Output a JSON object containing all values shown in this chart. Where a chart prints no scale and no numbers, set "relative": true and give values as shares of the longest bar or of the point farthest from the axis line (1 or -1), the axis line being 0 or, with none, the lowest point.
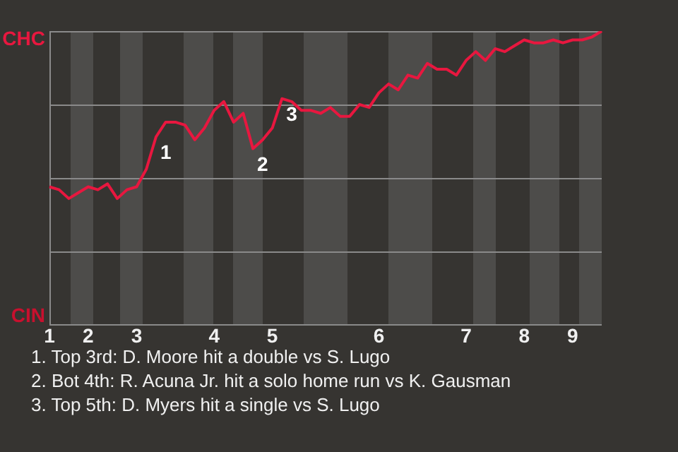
{
  "chart_data": {
    "type": "line",
    "relative": true,
    "categories": [
      "1",
      null,
      null,
      null,
      "2",
      null,
      null,
      null,
      null,
      "3",
      null,
      null,
      null,
      null,
      null,
      null,
      null,
      "4",
      null,
      null,
      null,
      null,
      null,
      "5",
      null,
      null,
      null,
      null,
      null,
      null,
      null,
      null,
      null,
      null,
      "6",
      null,
      null,
      null,
      null,
      null,
      null,
      null,
      null,
      "7",
      null,
      null,
      null,
      null,
      null,
      "8",
      null,
      null,
      null,
      null,
      "9",
      null,
      null,
      null
    ],
    "series": [
      {
        "color": "#e8173f",
        "values": [
          0.47,
          0.46,
          0.43,
          0.45,
          0.47,
          0.46,
          0.48,
          0.43,
          0.46,
          0.47,
          0.53,
          0.64,
          0.69,
          0.69,
          0.68,
          0.63,
          0.67,
          0.73,
          0.76,
          0.69,
          0.72,
          0.6,
          0.63,
          0.67,
          0.77,
          0.76,
          0.73,
          0.73,
          0.72,
          0.74,
          0.71,
          0.71,
          0.75,
          0.74,
          0.79,
          0.82,
          0.8,
          0.85,
          0.84,
          0.89,
          0.87,
          0.87,
          0.85,
          0.9,
          0.93,
          0.9,
          0.94,
          0.93,
          0.95,
          0.97,
          0.96,
          0.96,
          0.97,
          0.96,
          0.97,
          0.97,
          0.98,
          1
        ]
      }
    ],
    "grid": false,
    "legend": false,
    "marker": "none",
    "line_style": "solid",
    "ref_lines": [
      {
        "axis": "y",
        "value": 0.25,
        "color": "#8a8a8a"
      },
      {
        "axis": "y",
        "value": 0.5,
        "color": "#8a8a8a"
      },
      {
        "axis": "y",
        "value": 0.75,
        "color": "#8a8a8a"
      },
      {
        "axis": "y",
        "value": 1,
        "color": "#8a8a8a"
      }
    ],
    "annotations": [
      "CHC",
      "CIN",
      {
        "text": "1",
        "y": 0.64
      },
      {
        "text": "2",
        "y": 0.6
      },
      {
        "text": "3",
        "y": 0.77
      },
      "1. Top 3rd: D. Moore hit a double vs S. Lugo",
      "2. Bot 4th: R. Acuna Jr. hit a solo home run vs K. Gausman",
      "3. Top 5th: D. Myers hit a single vs S. Lugo"
    ]
  }
}
